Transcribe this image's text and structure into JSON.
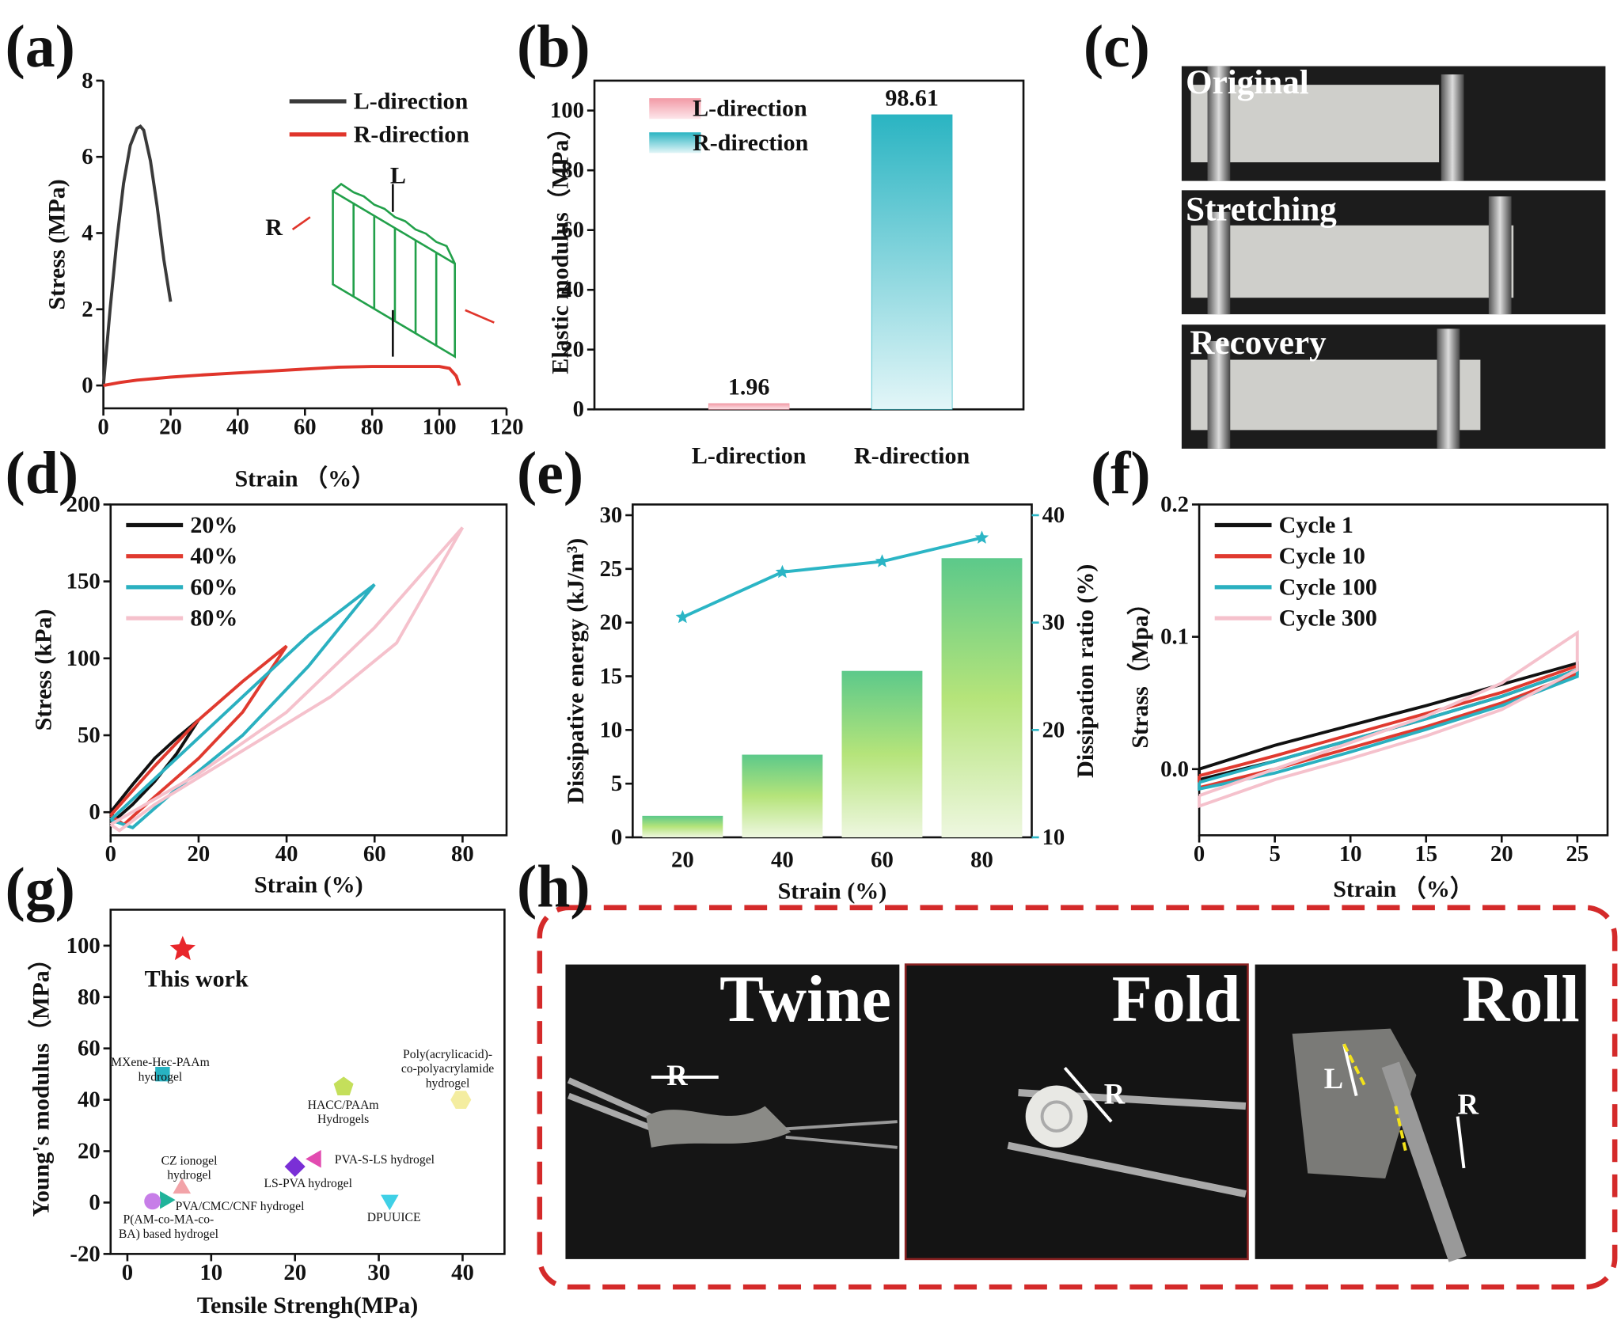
{
  "chart_data": [
    {
      "type": "line",
      "label": "(a)",
      "xlabel": "Strain （%）",
      "ylabel": "Stress (MPa)",
      "xlim": [
        0,
        120
      ],
      "ylim": [
        -0.6,
        8
      ],
      "xticks": [
        0,
        20,
        40,
        60,
        80,
        100,
        120
      ],
      "yticks": [
        0,
        2,
        4,
        6,
        8
      ],
      "legend": "upper right",
      "annotations": [
        "R",
        "L"
      ],
      "series": [
        {
          "name": "L-direction",
          "color": "#3a3a3a",
          "x": [
            0,
            2,
            4,
            6,
            8,
            10,
            11,
            12,
            14,
            16,
            18,
            20
          ],
          "values": [
            0,
            2.0,
            3.8,
            5.3,
            6.3,
            6.75,
            6.8,
            6.7,
            5.9,
            4.7,
            3.3,
            2.2
          ]
        },
        {
          "name": "R-direction",
          "color": "#e0352b",
          "x": [
            0,
            5,
            10,
            20,
            30,
            40,
            50,
            60,
            70,
            80,
            90,
            100,
            103,
            105,
            106
          ],
          "values": [
            0,
            0.08,
            0.14,
            0.22,
            0.28,
            0.33,
            0.38,
            0.43,
            0.48,
            0.5,
            0.5,
            0.5,
            0.45,
            0.25,
            0
          ]
        }
      ]
    },
    {
      "type": "bar",
      "label": "(b)",
      "ylabel": "Elastic modulus（MPa）",
      "ylim": [
        0,
        110
      ],
      "yticks": [
        0,
        20,
        40,
        60,
        80,
        100
      ],
      "legend": "upper left",
      "categories": [
        "L-direction",
        "R-direction"
      ],
      "values": [
        1.96,
        98.61
      ],
      "colors": [
        "#f29aa6",
        "#2ab4c2"
      ]
    },
    {
      "type": "line",
      "label": "(d)",
      "xlabel": "Strain (%)",
      "ylabel": "Stress (kPa)",
      "xlim": [
        0,
        90
      ],
      "ylim": [
        -15,
        200
      ],
      "xticks": [
        0,
        20,
        40,
        60,
        80
      ],
      "yticks": [
        0,
        50,
        100,
        150,
        200
      ],
      "legend": "upper left",
      "series": [
        {
          "name": "20%",
          "color": "#111111",
          "x": [
            0,
            5,
            10,
            15,
            20,
            15,
            10,
            5,
            1,
            0
          ],
          "values": [
            0,
            18,
            35,
            48,
            60,
            38,
            20,
            5,
            -5,
            0
          ]
        },
        {
          "name": "40%",
          "color": "#e03a2f",
          "x": [
            0,
            10,
            20,
            30,
            40,
            30,
            20,
            10,
            3,
            0
          ],
          "values": [
            -2,
            30,
            60,
            85,
            108,
            65,
            35,
            10,
            -8,
            -2
          ]
        },
        {
          "name": "60%",
          "color": "#2ab0c0",
          "x": [
            0,
            15,
            30,
            45,
            60,
            45,
            30,
            15,
            5,
            0
          ],
          "values": [
            -5,
            35,
            75,
            115,
            148,
            95,
            50,
            15,
            -10,
            -5
          ]
        },
        {
          "name": "80%",
          "color": "#f5c1cc",
          "x": [
            0,
            20,
            40,
            60,
            80,
            65,
            50,
            30,
            10,
            2,
            0
          ],
          "values": [
            -8,
            25,
            65,
            120,
            185,
            110,
            75,
            40,
            5,
            -12,
            -8
          ]
        }
      ]
    },
    {
      "type": "bar_line",
      "label": "(e)",
      "xlabel": "Strain (%)",
      "ylabel": "Dissipative energy (kJ/m³)",
      "y2label": "Dissipation ratio (%)",
      "categories": [
        20,
        40,
        60,
        80
      ],
      "ylim": [
        0,
        31
      ],
      "yticks": [
        0,
        5,
        10,
        15,
        20,
        25,
        30
      ],
      "y2lim": [
        10,
        41
      ],
      "y2ticks": [
        10,
        20,
        30,
        40
      ],
      "series": [
        {
          "color": "#6fcf8a",
          "values": [
            2,
            7.7,
            15.5,
            26
          ]
        },
        {
          "color": "#2bb5c5",
          "axis": "y2",
          "values": [
            30.5,
            34.7,
            35.7,
            37.9
          ]
        }
      ]
    },
    {
      "type": "line",
      "label": "(f)",
      "xlabel": "Strain （%）",
      "ylabel": "Strass（Mpa）",
      "xlim": [
        0,
        27
      ],
      "ylim": [
        -0.05,
        0.2
      ],
      "xticks": [
        0,
        5,
        10,
        15,
        20,
        25
      ],
      "yticks": [
        {
          "value": 0,
          "label": "0.0"
        },
        0.1,
        0.2
      ],
      "legend": "upper left",
      "series": [
        {
          "name": "Cycle 1",
          "color": "#111111",
          "x": [
            0,
            5,
            10,
            15,
            20,
            25,
            25,
            20,
            15,
            10,
            5,
            0,
            0
          ],
          "values": [
            0,
            0.018,
            0.033,
            0.048,
            0.064,
            0.08,
            0.075,
            0.055,
            0.038,
            0.022,
            0.006,
            -0.008,
            0
          ]
        },
        {
          "name": "Cycle 10",
          "color": "#e03a2f",
          "x": [
            0,
            5,
            10,
            15,
            20,
            25,
            25,
            20,
            15,
            10,
            5,
            0,
            0
          ],
          "values": [
            -0.005,
            0.01,
            0.026,
            0.042,
            0.058,
            0.078,
            0.072,
            0.05,
            0.032,
            0.016,
            0.0,
            -0.014,
            -0.005
          ]
        },
        {
          "name": "Cycle 100",
          "color": "#2ab0c0",
          "x": [
            0,
            5,
            10,
            15,
            20,
            25,
            25,
            20,
            15,
            10,
            5,
            0,
            0
          ],
          "values": [
            -0.01,
            0.006,
            0.022,
            0.038,
            0.055,
            0.075,
            0.07,
            0.048,
            0.03,
            0.013,
            -0.003,
            -0.015,
            -0.01
          ]
        },
        {
          "name": "Cycle 300",
          "color": "#f5c1cc",
          "x": [
            0,
            5,
            10,
            15,
            20,
            25,
            25,
            20,
            15,
            10,
            5,
            0,
            0
          ],
          "values": [
            -0.02,
            0.0,
            0.02,
            0.04,
            0.065,
            0.103,
            0.075,
            0.045,
            0.025,
            0.008,
            -0.008,
            -0.028,
            -0.02
          ]
        }
      ]
    },
    {
      "type": "scatter",
      "label": "(g)",
      "xlabel": "Tensile Strengh(MPa)",
      "ylabel": "Young's modulus（MPa）",
      "xlim": [
        -2,
        45
      ],
      "ylim": [
        -20,
        114
      ],
      "xticks": [
        0,
        10,
        20,
        30,
        40
      ],
      "yticks": [
        -20,
        0,
        20,
        40,
        60,
        80,
        100
      ],
      "x": [
        6.6,
        4.2,
        25.8,
        39.8,
        6.5,
        20,
        22.5,
        4.5,
        3,
        31.3
      ],
      "values": [
        98.6,
        50,
        45,
        40,
        5.5,
        14,
        17,
        1,
        0.5,
        1
      ],
      "colors": [
        "#e8262b",
        "#27b3c2",
        "#c4df5b",
        "#f4eda0",
        "#f2a3a8",
        "#7a2fd6",
        "#e24bb0",
        "#20b39a",
        "#c77ee8",
        "#3fd0e6"
      ],
      "markers": [
        "star",
        "square",
        "pentagon",
        "hexagon",
        "triangle-up",
        "diamond",
        "triangle-left",
        "triangle-right",
        "circle",
        "triangle-down"
      ],
      "point_labels": [
        [
          "This work"
        ],
        [
          "MXene-Hec-PAAm",
          "hydrogel"
        ],
        [
          "HACC/PAAm",
          "Hydrogels"
        ],
        [
          "Poly(acrylicacid)-",
          "co-polyacrylamide",
          "hydrogel"
        ],
        [
          "CZ ionogel",
          "hydrogel"
        ],
        [
          "LS-PVA hydrogel"
        ],
        [
          "PVA-S-LS hydrogel"
        ],
        [
          "PVA/CMC/CNF hydrogel"
        ],
        [
          "P(AM-co-MA-co-",
          "BA) based hydrogel"
        ],
        [
          "DPUUICE"
        ]
      ]
    }
  ],
  "panels": [
    {
      "label": "(c)",
      "captions": [
        "Original",
        "Stretching",
        "Recovery"
      ]
    },
    {
      "label": "(h)",
      "captions": [
        "Twine",
        "Fold",
        "Roll"
      ],
      "annotations": [
        "R",
        "R",
        "L",
        "R"
      ]
    }
  ]
}
